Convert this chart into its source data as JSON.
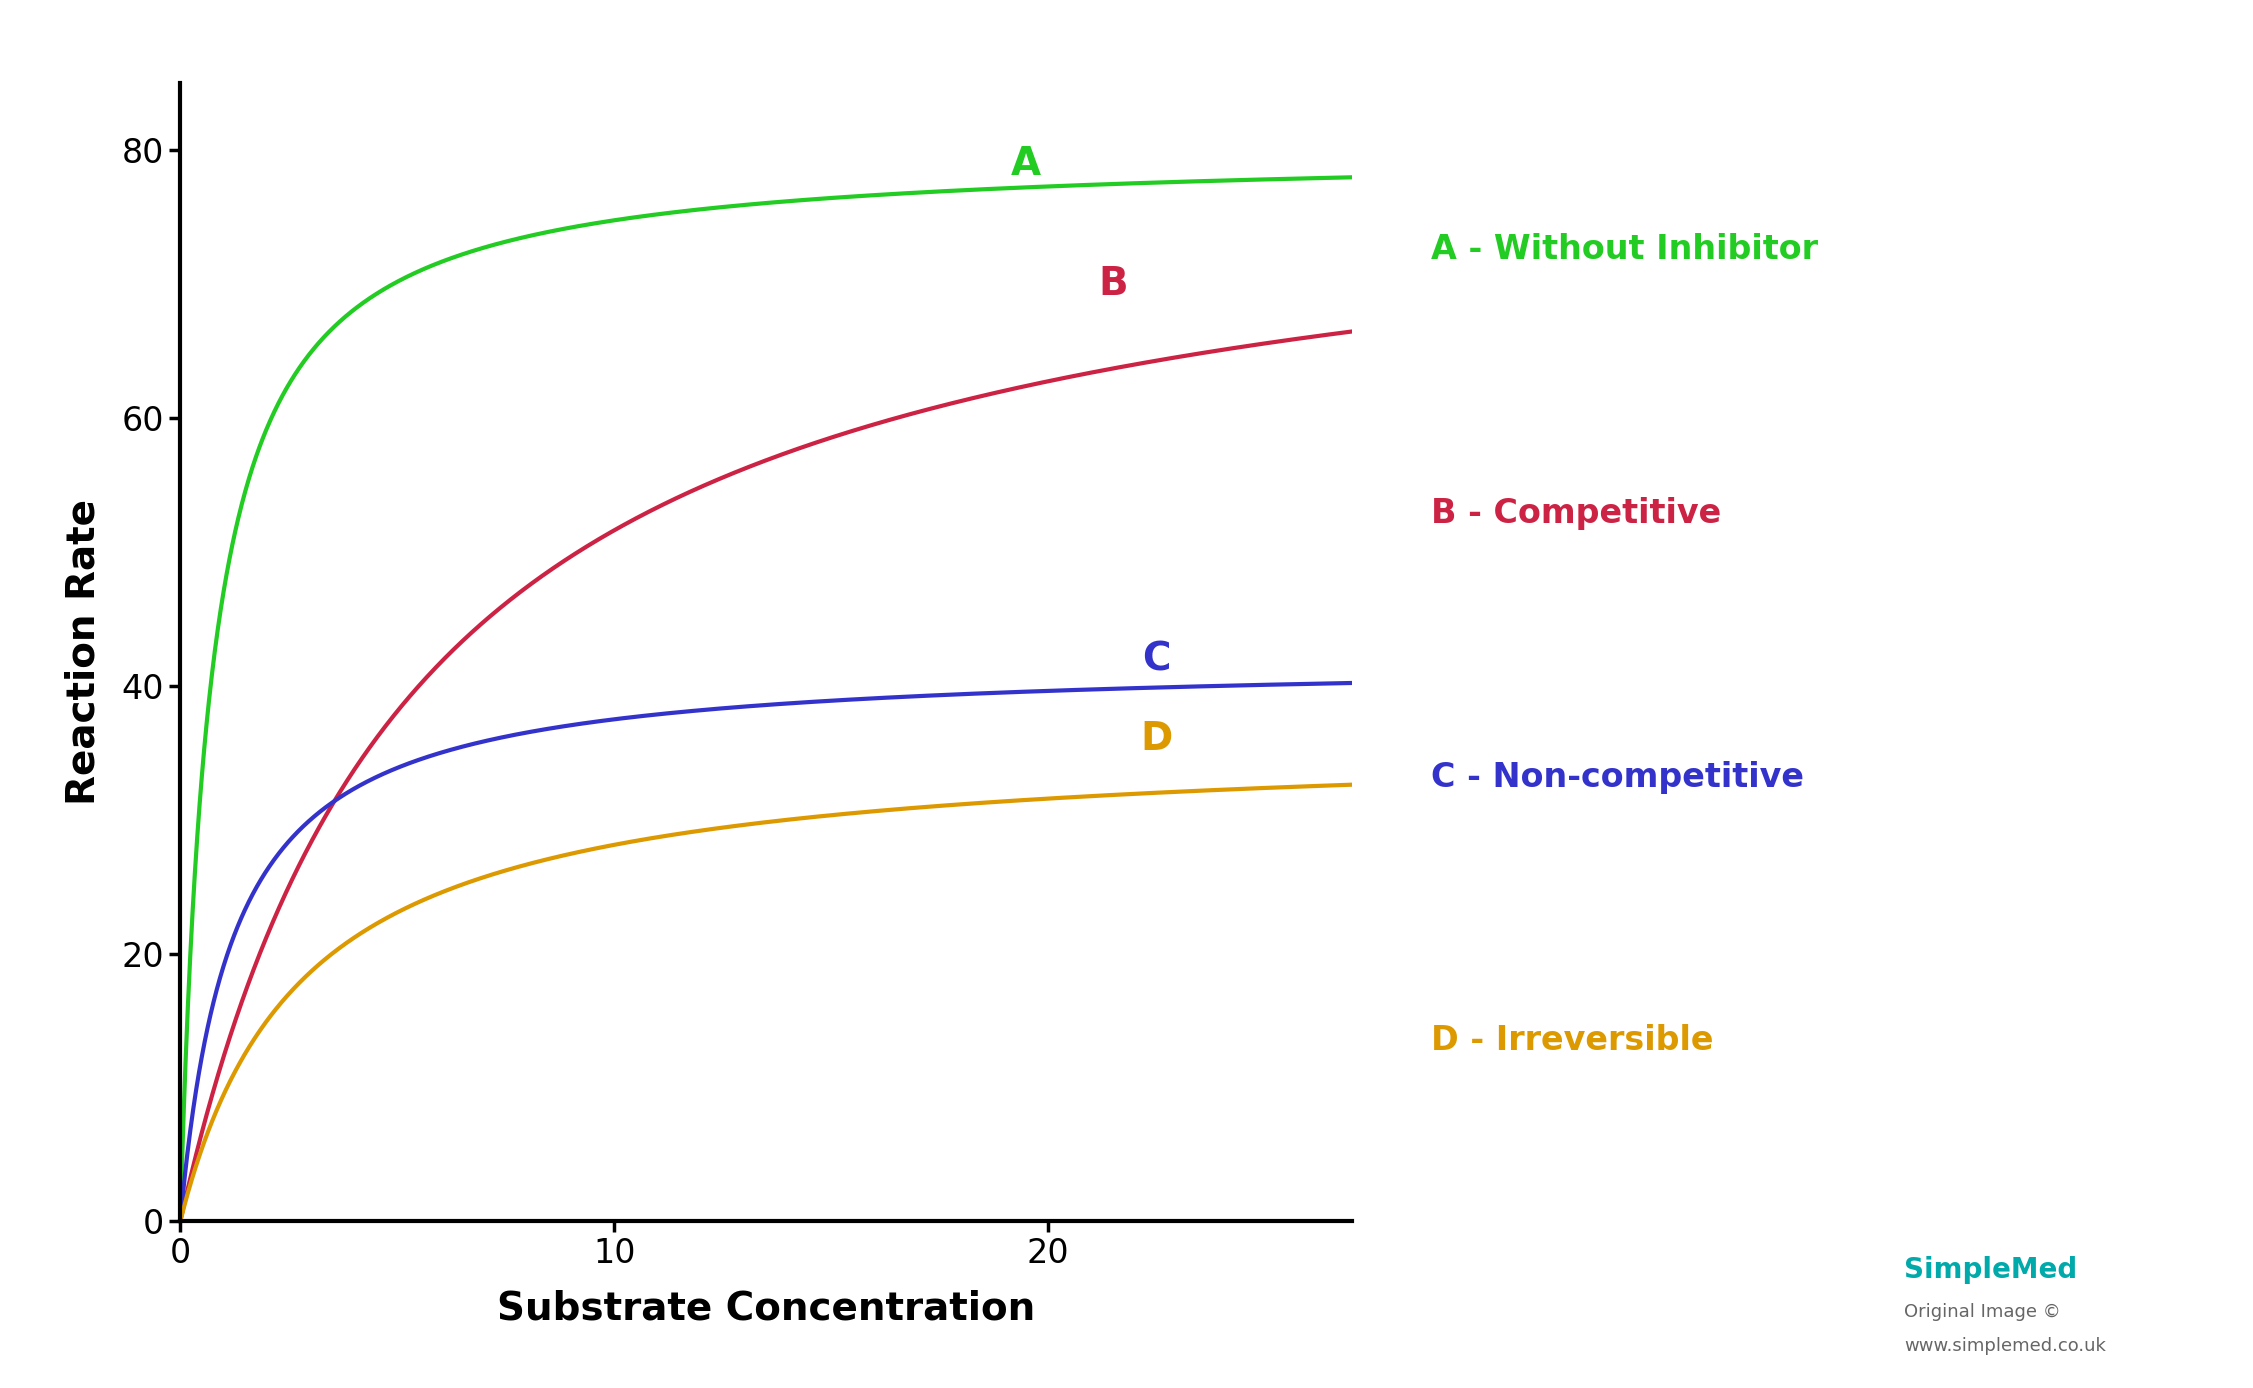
{
  "title": "",
  "xlabel": "Substrate Concentration",
  "ylabel": "Reaction Rate",
  "xlim": [
    0,
    27
  ],
  "ylim": [
    0,
    85
  ],
  "yticks": [
    0,
    20,
    40,
    60,
    80
  ],
  "xticks": [
    0,
    10,
    20
  ],
  "background_color": "#ffffff",
  "curves": {
    "A": {
      "label": "A",
      "color": "#22cc22",
      "Vmax": 80,
      "Km": 0.7
    },
    "B": {
      "label": "B",
      "color": "#cc2244",
      "Vmax": 80,
      "Km": 5.5
    },
    "C": {
      "label": "C",
      "color": "#3333cc",
      "Vmax": 42,
      "Km": 1.2
    },
    "D": {
      "label": "D",
      "color": "#dd9900",
      "Vmax": 36,
      "Km": 2.8
    }
  },
  "curve_label_positions": {
    "A": [
      19.5,
      79
    ],
    "B": [
      21.5,
      70
    ],
    "C": [
      22.5,
      42
    ],
    "D": [
      22.5,
      36
    ]
  },
  "legend_entries": [
    {
      "text": "A - Without Inhibitor",
      "color": "#22cc22"
    },
    {
      "text": "B - Competitive",
      "color": "#cc2244"
    },
    {
      "text": "C - Non-competitive",
      "color": "#3333cc"
    },
    {
      "text": "D - Irreversible",
      "color": "#dd9900"
    }
  ],
  "axis_linewidth": 3.0,
  "curve_linewidth": 3.0,
  "xlabel_fontsize": 28,
  "ylabel_fontsize": 28,
  "tick_fontsize": 24,
  "curve_label_fontsize": 28,
  "legend_fontsize": 24,
  "simplemed_text": "SimpleMed",
  "simplemed_sub1": "Original Image ©",
  "simplemed_sub2": "www.simplemed.co.uk"
}
